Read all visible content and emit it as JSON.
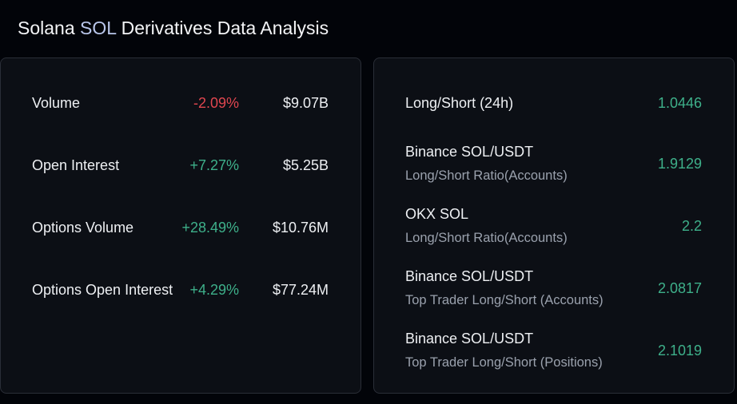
{
  "header": {
    "title_prefix": "Solana ",
    "title_accent": "SOL",
    "title_suffix": " Derivatives Data Analysis"
  },
  "colors": {
    "background": "#020409",
    "card": "#0c0f15",
    "border": "#2a2e37",
    "positive": "#3eb08a",
    "negative": "#e0464f",
    "accent": "#b9c6ea"
  },
  "metrics": [
    {
      "label": "Volume",
      "change": "-2.09%",
      "value": "$9.07B",
      "direction": "negative"
    },
    {
      "label": "Open Interest",
      "change": "+7.27%",
      "value": "$5.25B",
      "direction": "positive"
    },
    {
      "label": "Options Volume",
      "change": "+28.49%",
      "value": "$10.76M",
      "direction": "positive"
    },
    {
      "label": "Options Open Interest",
      "change": "+4.29%",
      "value": "$77.24M",
      "direction": "positive"
    }
  ],
  "ratios": [
    {
      "label": "Long/Short (24h)",
      "sublabel": "",
      "value": "1.0446"
    },
    {
      "label": "Binance SOL/USDT",
      "sublabel": "Long/Short Ratio(Accounts)",
      "value": "1.9129"
    },
    {
      "label": "OKX SOL",
      "sublabel": "Long/Short Ratio(Accounts)",
      "value": "2.2"
    },
    {
      "label": "Binance SOL/USDT",
      "sublabel": "Top Trader Long/Short (Accounts)",
      "value": "2.0817"
    },
    {
      "label": "Binance SOL/USDT",
      "sublabel": "Top Trader Long/Short (Positions)",
      "value": "2.1019"
    }
  ]
}
